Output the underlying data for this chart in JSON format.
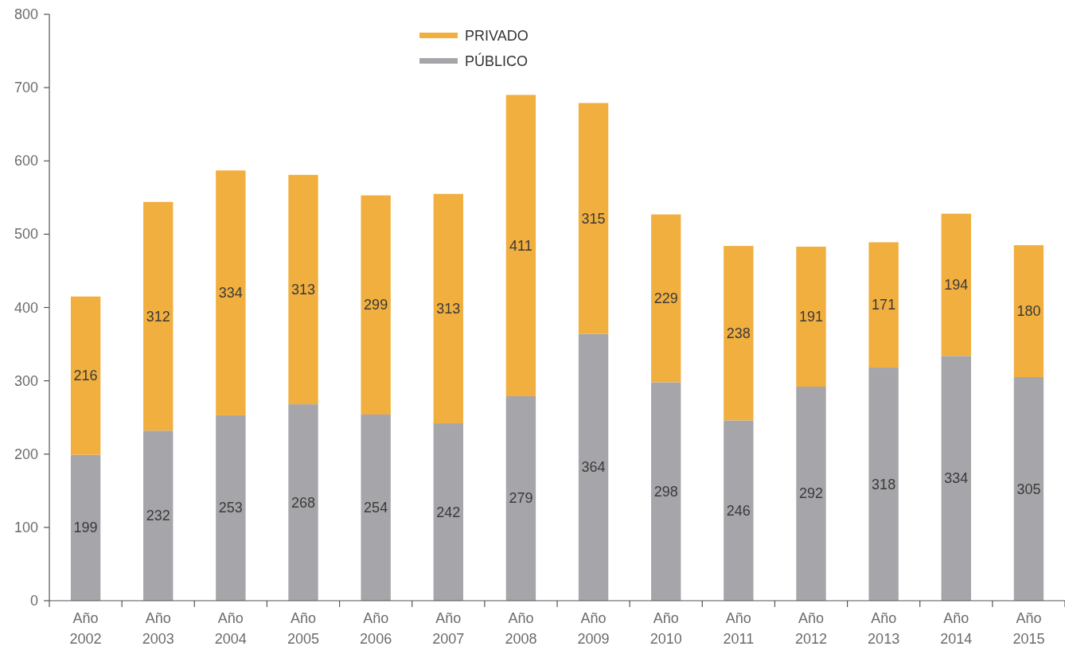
{
  "chart_data": {
    "type": "bar",
    "categories": [
      "Año 2002",
      "Año 2003",
      "Año 2004",
      "Año 2005",
      "Año 2006",
      "Año 2007",
      "Año 2008",
      "Año 2009",
      "Año 2010",
      "Año 2011",
      "Año 2012",
      "Año 2013",
      "Año 2014",
      "Año 2015"
    ],
    "series": [
      {
        "name": "PÚBLICO",
        "color": "#a6a6aa",
        "values": [
          199,
          232,
          253,
          268,
          254,
          242,
          279,
          364,
          298,
          246,
          292,
          318,
          334,
          305
        ]
      },
      {
        "name": "PRIVADO",
        "color": "#f1af3f",
        "values": [
          216,
          312,
          334,
          313,
          299,
          313,
          411,
          315,
          229,
          238,
          191,
          171,
          194,
          180
        ]
      }
    ],
    "stacked": true,
    "ylim": [
      0,
      800
    ],
    "yticks": [
      0,
      100,
      200,
      300,
      400,
      500,
      600,
      700,
      800
    ],
    "data_labels": true,
    "legend": "top"
  }
}
